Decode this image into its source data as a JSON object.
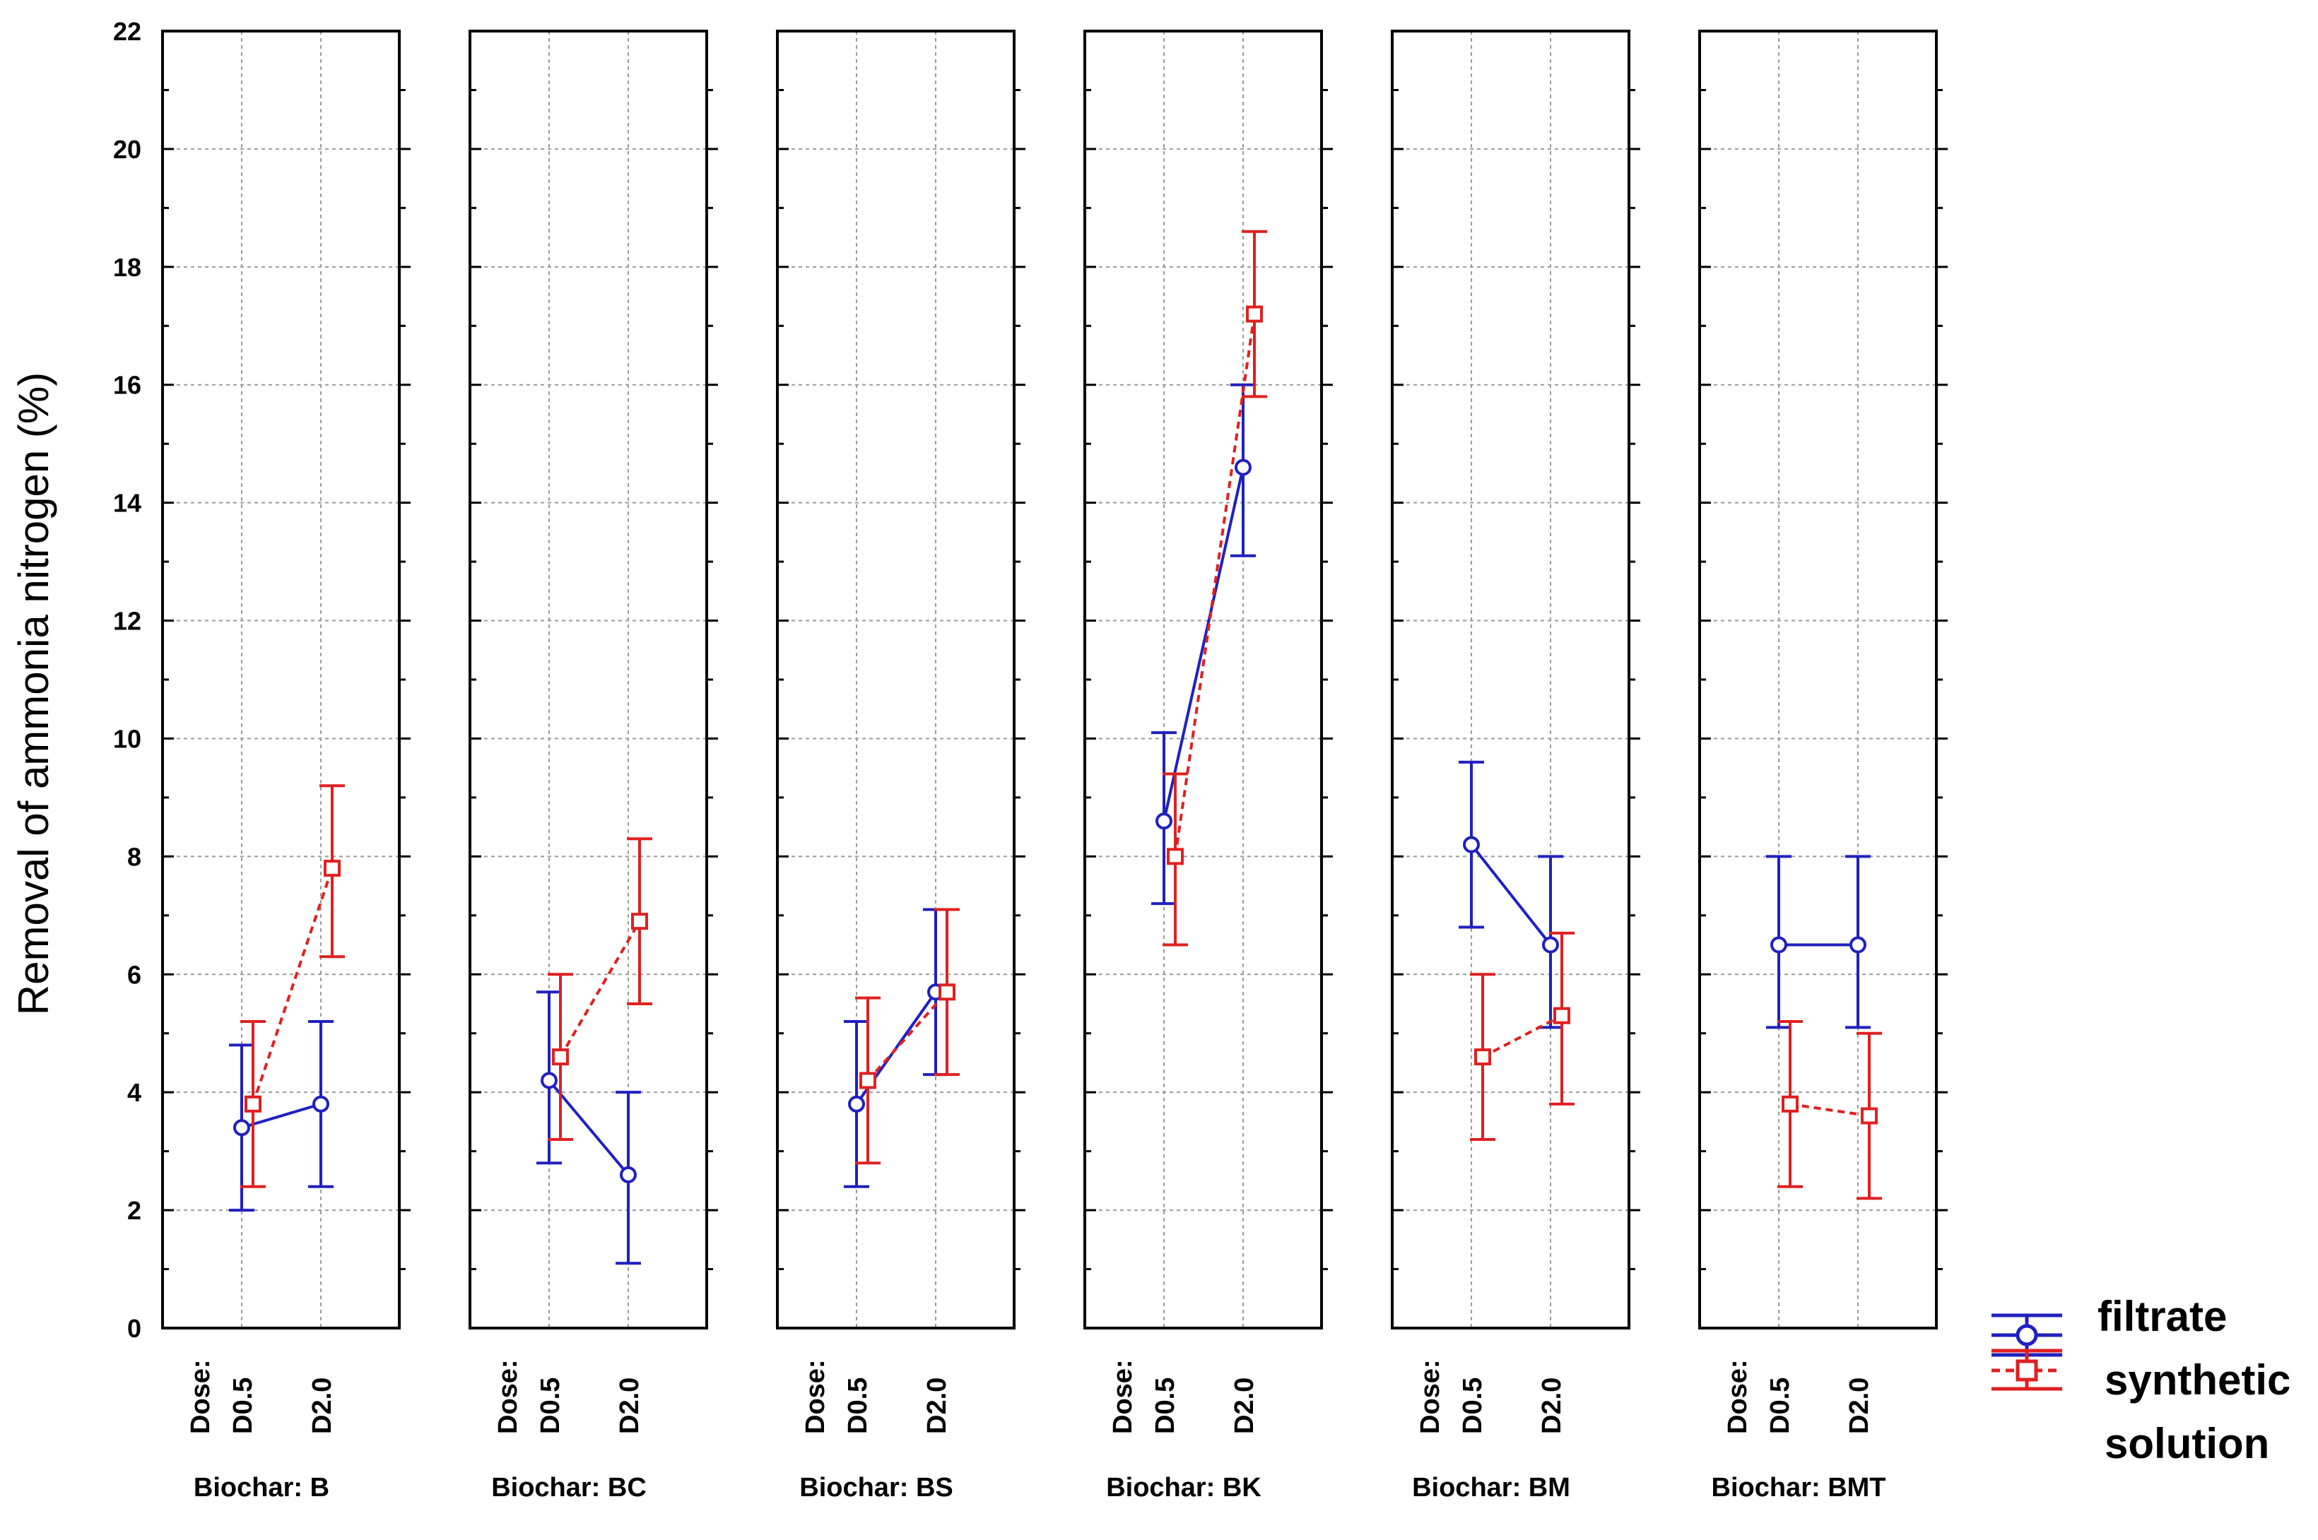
{
  "chart_data": {
    "type": "line",
    "ylabel": "Removal of ammonia nitrogen (%)",
    "ylim": [
      0,
      22
    ],
    "yticks": [
      "0",
      "2",
      "4",
      "6",
      "8",
      "10",
      "12",
      "14",
      "16",
      "18",
      "20",
      "22"
    ],
    "dose_prefix": "Dose:",
    "categories": [
      "D0.5",
      "D2.0"
    ],
    "colors": {
      "filtrate": "#2020c0",
      "synthetic": "#e02020"
    },
    "legend": {
      "filtrate": "filtrate",
      "synthetic_line1": "synthetic",
      "synthetic_line2": "solution"
    },
    "panels": [
      {
        "label": "Biochar: B",
        "filtrate": {
          "values": [
            3.4,
            3.8
          ],
          "lower": [
            2.0,
            2.4
          ],
          "upper": [
            4.8,
            5.2
          ]
        },
        "synthetic": {
          "values": [
            3.8,
            7.8
          ],
          "lower": [
            2.4,
            6.3
          ],
          "upper": [
            5.2,
            9.2
          ]
        }
      },
      {
        "label": "Biochar: BC",
        "filtrate": {
          "values": [
            4.2,
            2.6
          ],
          "lower": [
            2.8,
            1.1
          ],
          "upper": [
            5.7,
            4.0
          ]
        },
        "synthetic": {
          "values": [
            4.6,
            6.9
          ],
          "lower": [
            3.2,
            5.5
          ],
          "upper": [
            6.0,
            8.3
          ]
        }
      },
      {
        "label": "Biochar: BS",
        "filtrate": {
          "values": [
            3.8,
            5.7
          ],
          "lower": [
            2.4,
            4.3
          ],
          "upper": [
            5.2,
            7.1
          ]
        },
        "synthetic": {
          "values": [
            4.2,
            5.7
          ],
          "lower": [
            2.8,
            4.3
          ],
          "upper": [
            5.6,
            7.1
          ]
        }
      },
      {
        "label": "Biochar: BK",
        "filtrate": {
          "values": [
            8.6,
            14.6
          ],
          "lower": [
            7.2,
            13.1
          ],
          "upper": [
            10.1,
            16.0
          ]
        },
        "synthetic": {
          "values": [
            8.0,
            17.2
          ],
          "lower": [
            6.5,
            15.8
          ],
          "upper": [
            9.4,
            18.6
          ]
        }
      },
      {
        "label": "Biochar: BM",
        "filtrate": {
          "values": [
            8.2,
            6.5
          ],
          "lower": [
            6.8,
            5.1
          ],
          "upper": [
            9.6,
            8.0
          ]
        },
        "synthetic": {
          "values": [
            4.6,
            5.3
          ],
          "lower": [
            3.2,
            3.8
          ],
          "upper": [
            6.0,
            6.7
          ]
        }
      },
      {
        "label": "Biochar: BMT",
        "filtrate": {
          "values": [
            6.5,
            6.5
          ],
          "lower": [
            5.1,
            5.1
          ],
          "upper": [
            8.0,
            8.0
          ]
        },
        "synthetic": {
          "values": [
            3.8,
            3.6
          ],
          "lower": [
            2.4,
            2.2
          ],
          "upper": [
            5.2,
            5.0
          ]
        }
      }
    ]
  }
}
